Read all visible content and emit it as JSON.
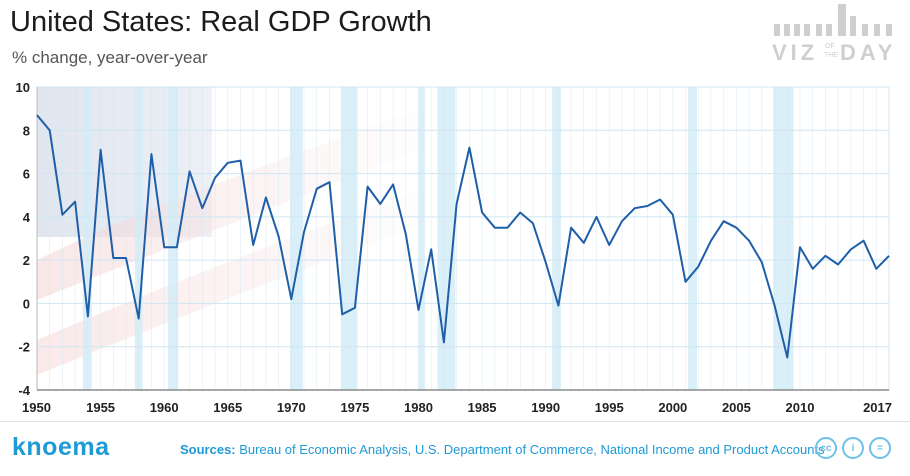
{
  "header": {
    "title": "United States: Real GDP Growth",
    "subtitle": "% change, year-over-year"
  },
  "brand": {
    "line1": "VIZ",
    "of": "OF",
    "the": "THE",
    "line2": "DAY"
  },
  "footer": {
    "logo": "knoema",
    "sources_label": "Sources:",
    "sources_text": "Bureau of Economic Analysis, U.S. Department of Commerce, National Income and Product Accounts"
  },
  "license_icons": [
    "cc-icon",
    "by-icon",
    "nd-icon"
  ],
  "colors": {
    "line": "#1f5fa8",
    "recession": "#d3ecf7",
    "accent": "#1e9ad6",
    "grid": "#cfe6f3"
  },
  "chart_data": {
    "type": "line",
    "title": "United States: Real GDP Growth",
    "subtitle": "% change, year-over-year",
    "xlim": [
      1950,
      2017
    ],
    "ylim": [
      -4,
      10
    ],
    "x_ticks": [
      "1950",
      "1955",
      "1960",
      "1965",
      "1970",
      "1975",
      "1980",
      "1985",
      "1990",
      "1995",
      "2000",
      "2005",
      "2010",
      "2017"
    ],
    "y_ticks": [
      "10",
      "8",
      "6",
      "4",
      "2",
      "0",
      "-2",
      "-4"
    ],
    "grid": true,
    "recession_periods": [
      [
        1953.6,
        1954.3
      ],
      [
        1957.7,
        1958.3
      ],
      [
        1960.3,
        1961.1
      ],
      [
        1969.9,
        1970.9
      ],
      [
        1973.9,
        1975.2
      ],
      [
        1980.0,
        1980.5
      ],
      [
        1981.5,
        1982.9
      ],
      [
        1990.5,
        1991.2
      ],
      [
        2001.2,
        2001.9
      ],
      [
        2007.9,
        2009.5
      ]
    ],
    "x": [
      1950,
      1951,
      1952,
      1953,
      1954,
      1955,
      1956,
      1957,
      1958,
      1959,
      1960,
      1961,
      1962,
      1963,
      1964,
      1965,
      1966,
      1967,
      1968,
      1969,
      1970,
      1971,
      1972,
      1973,
      1974,
      1975,
      1976,
      1977,
      1978,
      1979,
      1980,
      1981,
      1982,
      1983,
      1984,
      1985,
      1986,
      1987,
      1988,
      1989,
      1990,
      1991,
      1992,
      1993,
      1994,
      1995,
      1996,
      1997,
      1998,
      1999,
      2000,
      2001,
      2002,
      2003,
      2004,
      2005,
      2006,
      2007,
      2008,
      2009,
      2010,
      2011,
      2012,
      2013,
      2014,
      2015,
      2016,
      2017
    ],
    "series": [
      {
        "values": [
          8.7,
          8.0,
          4.1,
          4.7,
          -0.6,
          7.1,
          2.1,
          2.1,
          -0.7,
          6.9,
          2.6,
          2.6,
          6.1,
          4.4,
          5.8,
          6.5,
          6.6,
          2.7,
          4.9,
          3.1,
          0.2,
          3.3,
          5.3,
          5.6,
          -0.5,
          -0.2,
          5.4,
          4.6,
          5.5,
          3.2,
          -0.3,
          2.5,
          -1.8,
          4.6,
          7.2,
          4.2,
          3.5,
          3.5,
          4.2,
          3.7,
          1.9,
          -0.1,
          3.5,
          2.8,
          4.0,
          2.7,
          3.8,
          4.4,
          4.5,
          4.8,
          4.1,
          1.0,
          1.7,
          2.9,
          3.8,
          3.5,
          2.9,
          1.9,
          -0.1,
          -2.5,
          2.6,
          1.6,
          2.2,
          1.8,
          2.5,
          2.9,
          1.6,
          2.2
        ]
      }
    ]
  }
}
